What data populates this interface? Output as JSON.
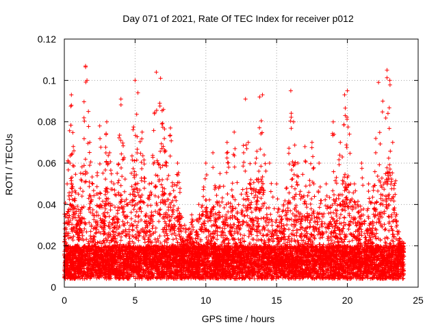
{
  "chart_data": {
    "type": "scatter",
    "title": "Day 071 of 2021, Rate Of TEC Index for receiver p012",
    "xlabel": "GPS time / hours",
    "ylabel": "ROTI / TECUs",
    "xlim": [
      0,
      25
    ],
    "ylim": [
      0,
      0.12
    ],
    "xticks": [
      "0",
      "5",
      "10",
      "15",
      "20",
      "25"
    ],
    "yticks": [
      "0",
      "0.02",
      "0.04",
      "0.06",
      "0.08",
      "0.1",
      "0.12"
    ],
    "grid": true,
    "marker": "plus",
    "color": "#ff0000",
    "data_x_range": [
      0,
      24
    ],
    "series": [
      {
        "description_points": [
          [
            0.0,
            0.008
          ],
          [
            0.1,
            0.021
          ],
          [
            0.2,
            0.05
          ],
          [
            0.4,
            0.06
          ],
          [
            0.5,
            0.093
          ],
          [
            0.5,
            0.088
          ],
          [
            1.0,
            0.045
          ],
          [
            1.5,
            0.107
          ],
          [
            1.6,
            0.1
          ],
          [
            1.7,
            0.085
          ],
          [
            1.8,
            0.07
          ],
          [
            2.0,
            0.05
          ],
          [
            2.5,
            0.078
          ],
          [
            3.0,
            0.08
          ],
          [
            3.2,
            0.065
          ],
          [
            3.5,
            0.05
          ],
          [
            4.0,
            0.091
          ],
          [
            4.2,
            0.062
          ],
          [
            4.5,
            0.04
          ],
          [
            5.0,
            0.1
          ],
          [
            5.2,
            0.094
          ],
          [
            5.5,
            0.075
          ],
          [
            6.0,
            0.05
          ],
          [
            6.5,
            0.104
          ],
          [
            6.8,
            0.101
          ],
          [
            7.0,
            0.086
          ],
          [
            7.5,
            0.077
          ],
          [
            8.0,
            0.06
          ],
          [
            8.5,
            0.03
          ],
          [
            9.0,
            0.035
          ],
          [
            9.5,
            0.04
          ],
          [
            10.0,
            0.06
          ],
          [
            10.5,
            0.065
          ],
          [
            11.0,
            0.055
          ],
          [
            11.5,
            0.07
          ],
          [
            12.0,
            0.075
          ],
          [
            12.5,
            0.045
          ],
          [
            12.8,
            0.091
          ],
          [
            13.0,
            0.07
          ],
          [
            13.5,
            0.06
          ],
          [
            13.8,
            0.092
          ],
          [
            14.0,
            0.093
          ],
          [
            14.5,
            0.06
          ],
          [
            15.0,
            0.05
          ],
          [
            15.5,
            0.04
          ],
          [
            16.0,
            0.095
          ],
          [
            16.2,
            0.08
          ],
          [
            16.5,
            0.06
          ],
          [
            17.0,
            0.068
          ],
          [
            17.5,
            0.07
          ],
          [
            18.0,
            0.06
          ],
          [
            18.5,
            0.05
          ],
          [
            19.0,
            0.08
          ],
          [
            19.5,
            0.07
          ],
          [
            19.8,
            0.093
          ],
          [
            20.0,
            0.095
          ],
          [
            20.5,
            0.05
          ],
          [
            21.0,
            0.06
          ],
          [
            21.5,
            0.05
          ],
          [
            22.0,
            0.065
          ],
          [
            22.2,
            0.099
          ],
          [
            22.5,
            0.09
          ],
          [
            22.8,
            0.105
          ],
          [
            23.0,
            0.1
          ],
          [
            23.2,
            0.07
          ],
          [
            23.5,
            0.03
          ],
          [
            24.0,
            0.015
          ]
        ]
      }
    ]
  }
}
